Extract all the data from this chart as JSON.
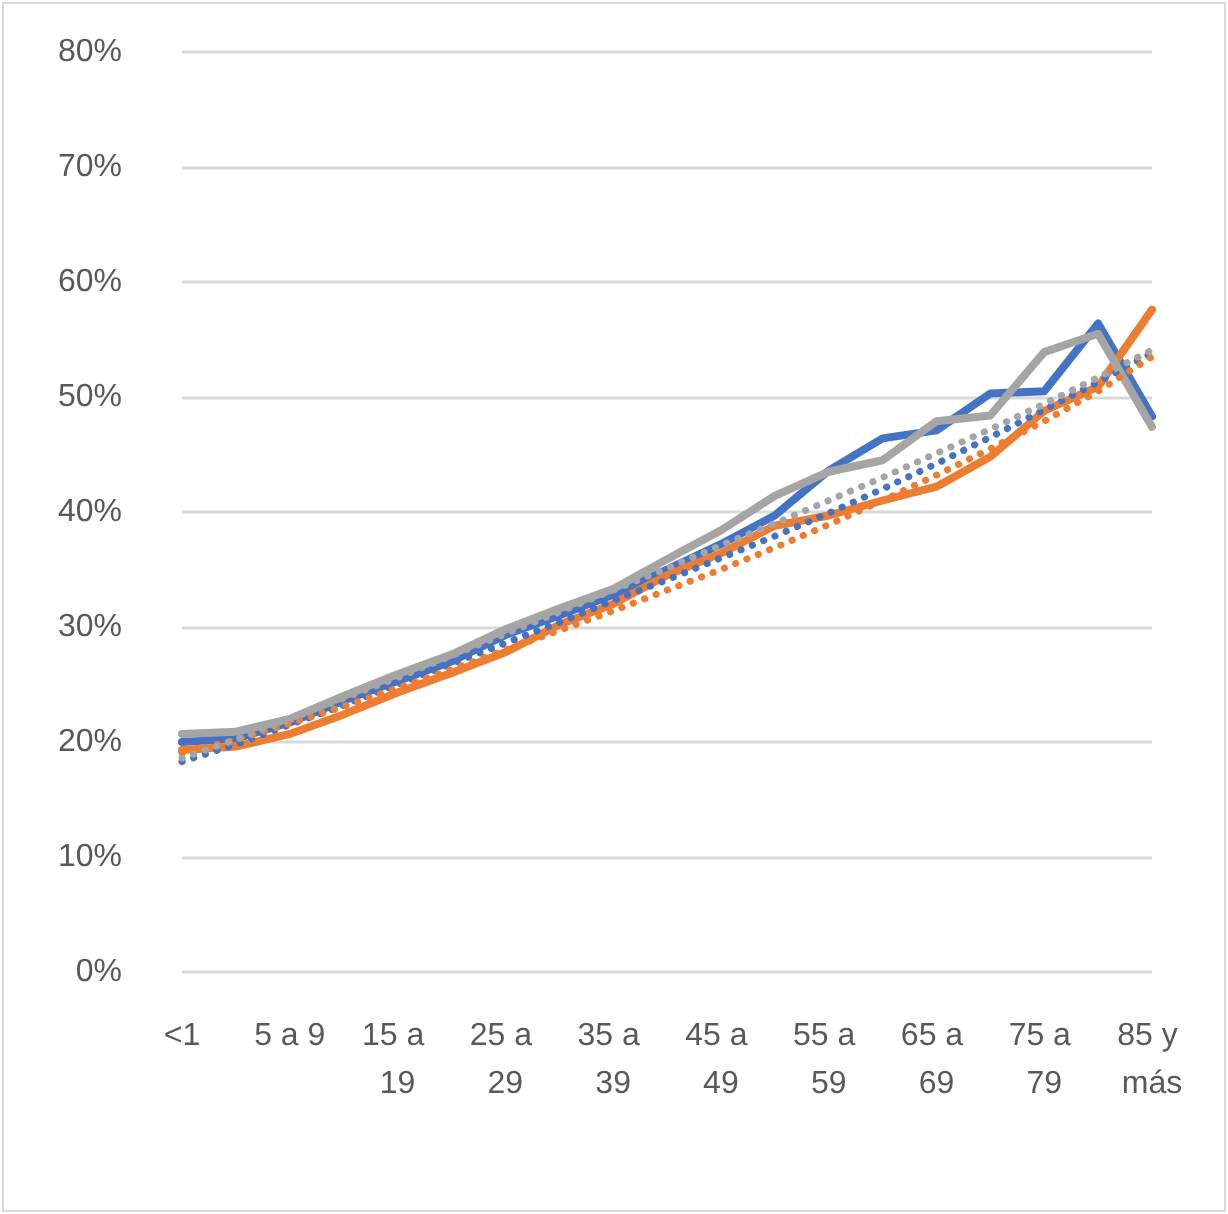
{
  "chart_data": {
    "type": "line",
    "categories": [
      "<1",
      null,
      "5 a 9",
      null,
      "15 a 19",
      null,
      "25 a 29",
      null,
      "35 a 39",
      null,
      "45 a 49",
      null,
      "55 a 59",
      null,
      "65 a 69",
      null,
      "75 a 79",
      null,
      "85 y más"
    ],
    "series": [
      {
        "color": "#4472c4",
        "line_style": "solid",
        "values": [
          20.0,
          20.3,
          21.7,
          23.6,
          25.3,
          27.0,
          29.3,
          31.0,
          32.8,
          35.0,
          37.2,
          39.7,
          43.6,
          46.4,
          47.1,
          50.3,
          50.5,
          56.4,
          48.3
        ]
      },
      {
        "color": "#ed7d31",
        "line_style": "solid",
        "values": [
          19.3,
          19.6,
          20.7,
          22.4,
          24.3,
          26.0,
          27.8,
          30.2,
          32.0,
          34.5,
          36.4,
          38.8,
          39.7,
          41.0,
          42.2,
          44.8,
          48.8,
          50.9,
          57.6
        ]
      },
      {
        "color": "#a5a5a5",
        "line_style": "solid",
        "values": [
          20.7,
          20.9,
          22.0,
          24.0,
          25.9,
          27.6,
          29.8,
          31.6,
          33.3,
          35.9,
          38.4,
          41.4,
          43.5,
          44.5,
          47.9,
          48.4,
          53.9,
          55.5,
          47.4
        ]
      },
      {
        "color": "#4472c4",
        "line_style": "dotted",
        "values": [
          18.3,
          19.8,
          21.5,
          23.2,
          25.0,
          26.8,
          28.6,
          30.4,
          32.3,
          34.1,
          36.0,
          37.9,
          39.9,
          42.0,
          44.2,
          46.5,
          48.9,
          51.3,
          53.8
        ]
      },
      {
        "color": "#ed7d31",
        "line_style": "dotted",
        "values": [
          19.0,
          20.2,
          21.6,
          23.1,
          24.7,
          26.3,
          28.0,
          29.7,
          31.4,
          33.2,
          35.0,
          36.9,
          38.9,
          41.0,
          43.2,
          45.5,
          47.9,
          50.5,
          53.5
        ]
      },
      {
        "color": "#a5a5a5",
        "line_style": "dotted",
        "values": [
          18.6,
          20.2,
          22.0,
          23.8,
          25.6,
          27.5,
          29.4,
          31.3,
          33.2,
          35.1,
          37.1,
          39.0,
          41.0,
          43.0,
          45.1,
          47.2,
          49.4,
          51.7,
          54.1
        ]
      }
    ],
    "ylim": [
      0,
      80
    ],
    "yticks": [
      {
        "value": 0,
        "label": "0%"
      },
      {
        "value": 10,
        "label": "10%"
      },
      {
        "value": 20,
        "label": "20%"
      },
      {
        "value": 30,
        "label": "30%"
      },
      {
        "value": 40,
        "label": "40%"
      },
      {
        "value": 50,
        "label": "50%"
      },
      {
        "value": 60,
        "label": "60%"
      },
      {
        "value": 70,
        "label": "70%"
      },
      {
        "value": 80,
        "label": "80%"
      }
    ],
    "grid": "y",
    "marker": "none"
  }
}
